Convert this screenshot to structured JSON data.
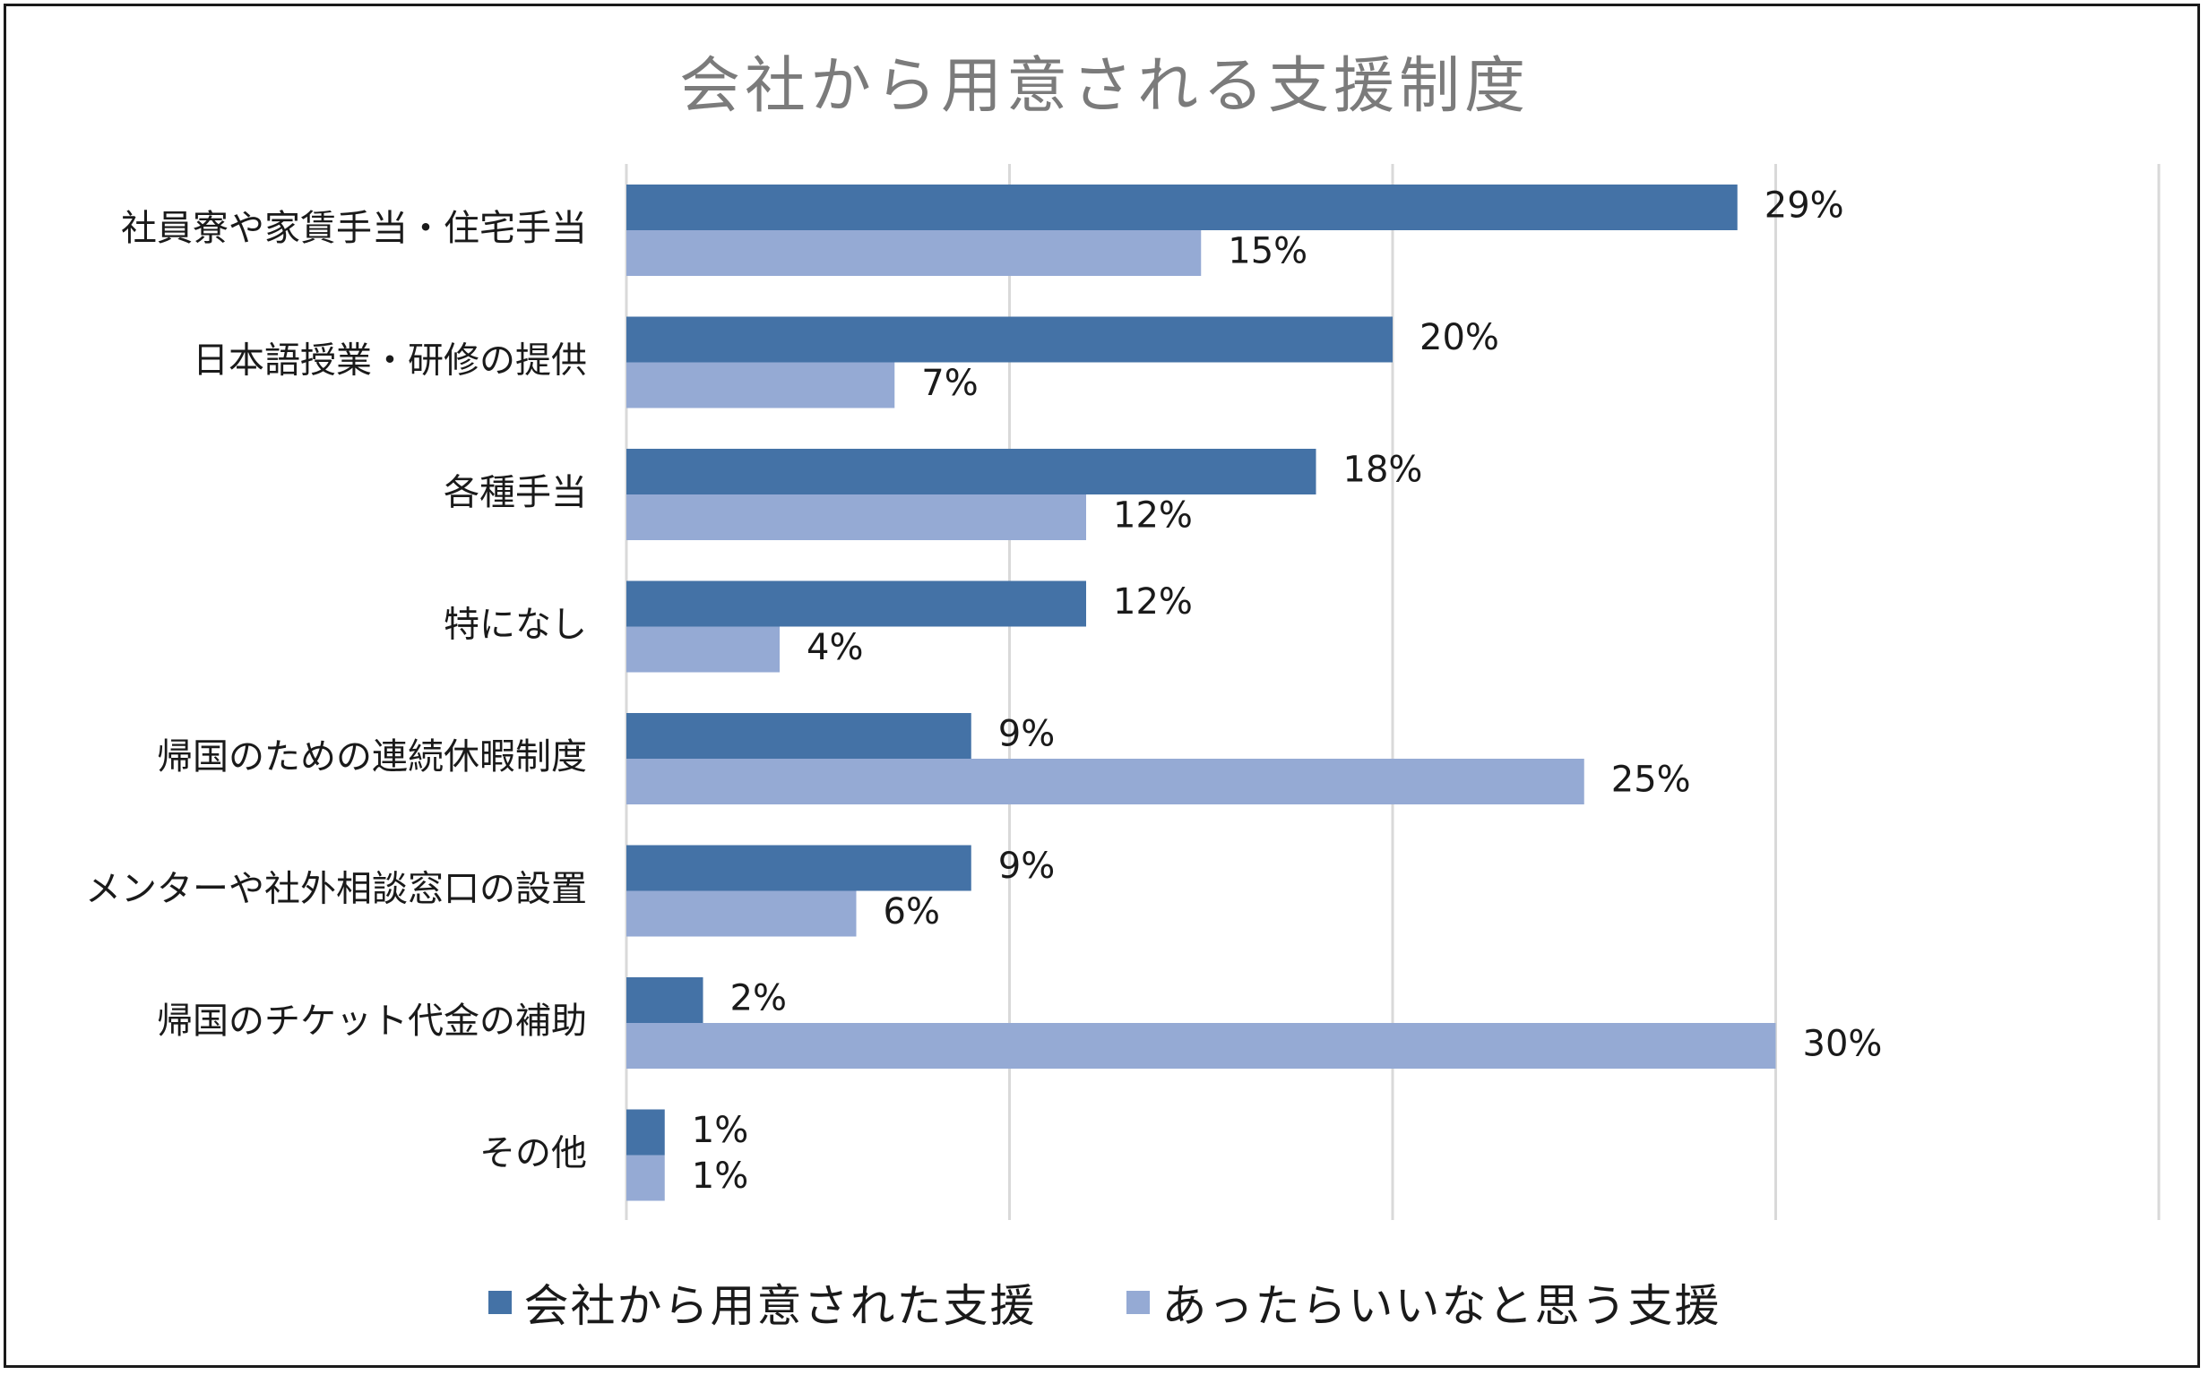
{
  "chart_data": {
    "type": "bar",
    "orientation": "horizontal",
    "title": "会社から用意される支援制度",
    "categories": [
      "社員寮や家賃手当・住宅手当",
      "日本語授業・研修の提供",
      "各種手当",
      "特になし",
      "帰国のための連続休暇制度",
      "メンターや社外相談窓口の設置",
      "帰国のチケット代金の補助",
      "その他"
    ],
    "series": [
      {
        "name": "会社から用意された支援",
        "color": "#4472a6",
        "values": [
          29,
          20,
          18,
          12,
          9,
          9,
          2,
          1
        ],
        "labels": [
          "29%",
          "20%",
          "18%",
          "12%",
          "9%",
          "9%",
          "2%",
          "1%"
        ]
      },
      {
        "name": "あったらいいなと思う支援",
        "color": "#95aad4",
        "values": [
          15,
          7,
          12,
          4,
          25,
          6,
          30,
          1
        ],
        "labels": [
          "15%",
          "7%",
          "12%",
          "4%",
          "25%",
          "6%",
          "30%",
          "1%"
        ]
      }
    ],
    "xlim": [
      0,
      40
    ],
    "x_gridlines": [
      0,
      10,
      20,
      30,
      40
    ],
    "grid": true,
    "x_tick_labels_shown": false,
    "legend_position": "bottom"
  }
}
